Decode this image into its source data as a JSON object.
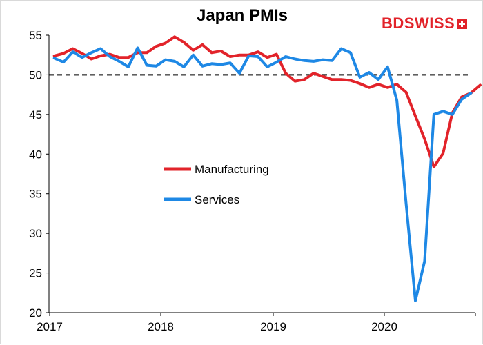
{
  "chart_data": {
    "type": "line",
    "title": "Japan PMIs",
    "xlabel": "",
    "ylabel": "",
    "ylim": [
      20,
      55
    ],
    "yticks": [
      "55",
      "50",
      "45",
      "40",
      "35",
      "30",
      "25",
      "20"
    ],
    "xticks": [
      "2017",
      "2018",
      "2019",
      "2020"
    ],
    "reference_line": 50,
    "grid": false,
    "legend_placement": "center-left",
    "series": [
      {
        "name": "Manufacturing",
        "color": "#e2232a",
        "values": [
          52.4,
          52.7,
          53.3,
          52.7,
          52.0,
          52.4,
          52.6,
          52.2,
          52.2,
          52.8,
          52.8,
          53.6,
          54.0,
          54.8,
          54.1,
          53.1,
          53.8,
          52.8,
          53.0,
          52.3,
          52.5,
          52.5,
          52.9,
          52.2,
          52.6,
          50.2,
          49.2,
          49.4,
          50.2,
          49.8,
          49.4,
          49.4,
          49.3,
          48.9,
          48.4,
          48.8,
          48.4,
          48.8,
          47.8,
          44.8,
          41.9,
          38.4,
          40.1,
          45.2,
          47.2,
          47.7,
          48.7
        ]
      },
      {
        "name": "Services",
        "color": "#1e88e5",
        "values": [
          52.1,
          51.6,
          52.9,
          52.2,
          52.8,
          53.3,
          52.3,
          51.7,
          51.0,
          53.4,
          51.2,
          51.1,
          51.9,
          51.7,
          51.0,
          52.5,
          51.1,
          51.4,
          51.3,
          51.5,
          50.2,
          52.4,
          52.3,
          51.0,
          51.6,
          52.3,
          52.0,
          51.8,
          51.7,
          51.9,
          51.8,
          53.3,
          52.8,
          49.7,
          50.3,
          49.4,
          51.0,
          46.8,
          33.8,
          21.5,
          26.5,
          45.0,
          45.4,
          45.0,
          46.9,
          47.7
        ]
      }
    ]
  },
  "logo": {
    "bd": "BD",
    "swiss": "SWISS"
  }
}
